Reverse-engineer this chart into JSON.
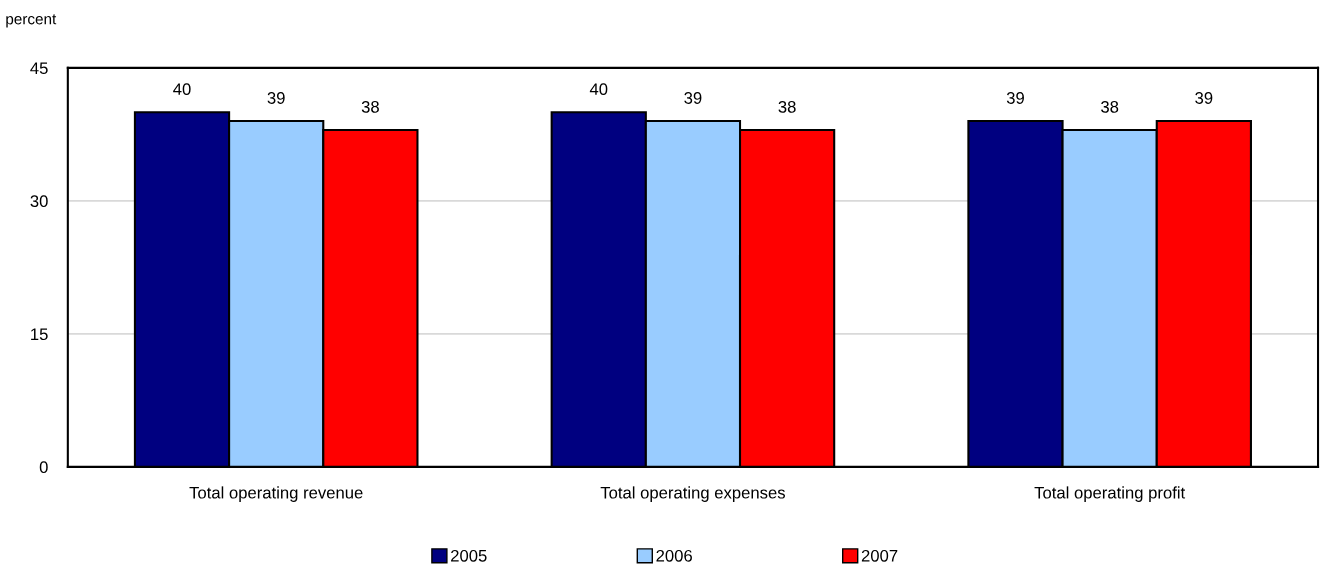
{
  "chart_data": {
    "type": "bar",
    "ylabel": "percent",
    "categories": [
      "Total operating revenue",
      "Total operating expenses",
      "Total operating profit"
    ],
    "series": [
      {
        "name": "2005",
        "color": "#000080",
        "values": [
          40,
          40,
          39
        ]
      },
      {
        "name": "2006",
        "color": "#99ccff",
        "values": [
          39,
          39,
          38
        ]
      },
      {
        "name": "2007",
        "color": "#ff0000",
        "values": [
          38,
          38,
          39
        ]
      }
    ],
    "ylim": [
      0,
      45
    ],
    "yticks": [
      0,
      15,
      30,
      45
    ],
    "grid": "y",
    "legend": "bottom",
    "data_labels": true
  }
}
